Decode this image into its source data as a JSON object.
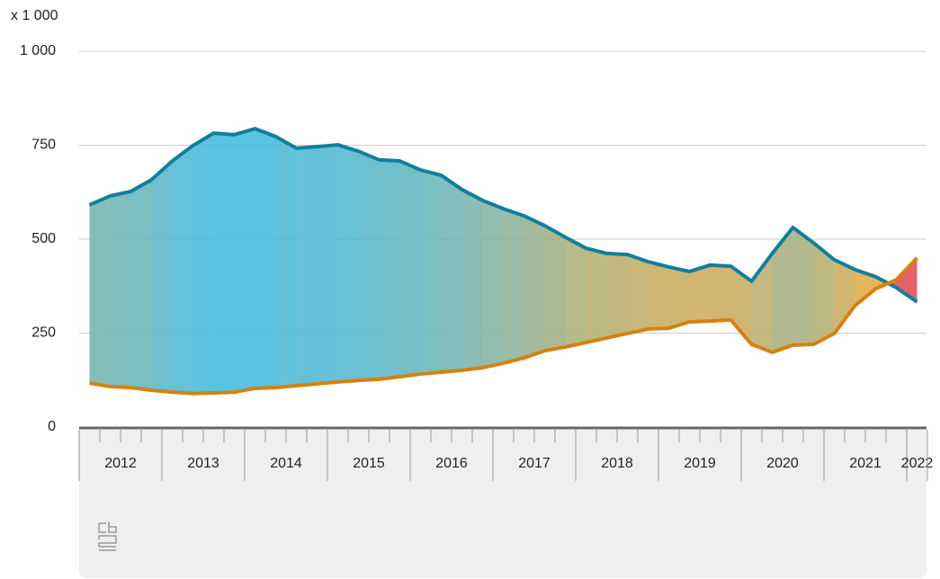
{
  "chart_data": {
    "type": "area-range",
    "y_unit_label": "x 1 000",
    "years": [
      "2012",
      "2013",
      "2014",
      "2015",
      "2016",
      "2017",
      "2018",
      "2019",
      "2020",
      "2021",
      "2022"
    ],
    "ylim": [
      0,
      1000
    ],
    "yticks": [
      0,
      250,
      500,
      750,
      {
        "value": 1000,
        "label": "1 000"
      }
    ],
    "grid": true,
    "fill_colors": {
      "wide": "#3bb8e0",
      "narrow": "#e8a63a",
      "crossed": "#e0474c"
    },
    "series": [
      {
        "color": "#0f7f9e",
        "values": [
          591,
          615,
          627,
          658,
          708,
          749,
          782,
          778,
          794,
          773,
          742,
          746,
          751,
          734,
          711,
          708,
          684,
          670,
          632,
          603,
          581,
          562,
          536,
          505,
          476,
          462,
          459,
          440,
          426,
          414,
          431,
          428,
          388,
          462,
          531,
          490,
          445,
          419,
          400,
          371,
          333
        ]
      },
      {
        "color": "#d4820f",
        "values": [
          117,
          108,
          105,
          98,
          93,
          89,
          91,
          93,
          103,
          105,
          110,
          115,
          120,
          124,
          127,
          134,
          141,
          146,
          151,
          158,
          170,
          184,
          203,
          213,
          225,
          237,
          249,
          261,
          263,
          280,
          282,
          285,
          220,
          199,
          218,
          220,
          249,
          323,
          368,
          392,
          450
        ]
      }
    ]
  }
}
